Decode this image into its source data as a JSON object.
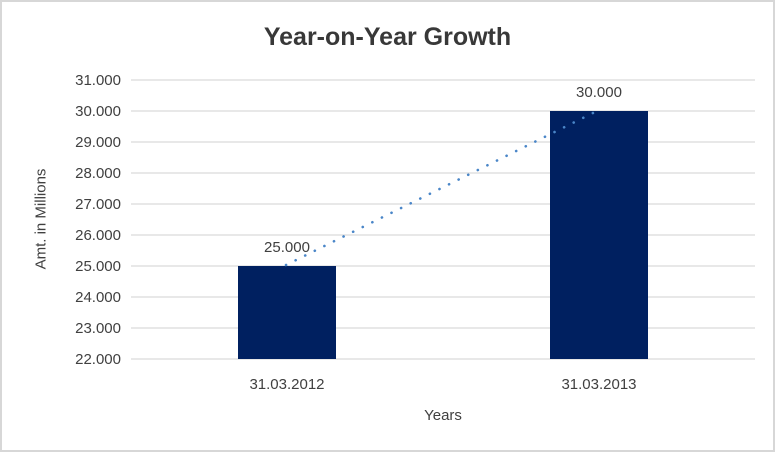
{
  "chart_data": {
    "type": "bar",
    "title": "Year-on-Year Growth",
    "xlabel": "Years",
    "ylabel": "Amt. in Millions",
    "categories": [
      "31.03.2012",
      "31.03.2013"
    ],
    "values": [
      25000,
      30000
    ],
    "value_labels": [
      "25.000",
      "30.000"
    ],
    "series": [
      {
        "name": "Year-on-Year Growth",
        "values": [
          25000,
          30000
        ]
      }
    ],
    "ylim": [
      22000,
      31000
    ],
    "ytick_step": 1000,
    "ytick_labels": [
      "22.000",
      "23.000",
      "24.000",
      "25.000",
      "26.000",
      "27.000",
      "28.000",
      "29.000",
      "30.000",
      "31.000"
    ],
    "grid": true,
    "legend_position": "none",
    "trendline": {
      "type": "linear",
      "style": "dotted",
      "from_value": 25000,
      "to_value": 30000
    },
    "colors": {
      "bar": "#002060",
      "trendline": "#4a86c8",
      "grid": "#d9d9d9",
      "axis_line": "#d0d0d0",
      "title_text": "#383838",
      "label_text": "#404040",
      "frame": "#d7d7d7",
      "background": "#ffffff"
    }
  }
}
